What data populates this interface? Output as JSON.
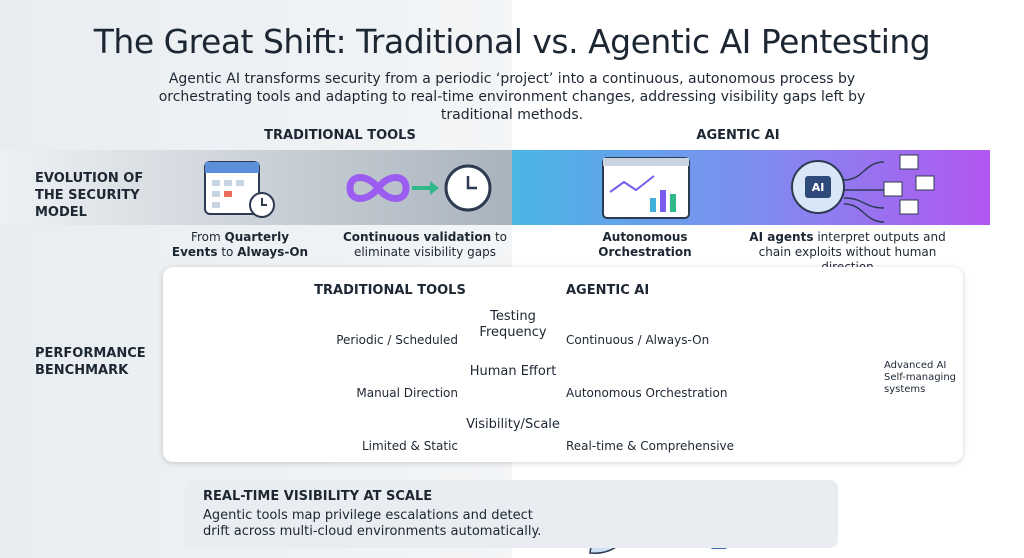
{
  "header": {
    "title": "The Great Shift: Traditional vs. Agentic AI Pentesting",
    "subtitle": "Agentic AI transforms security from a periodic ‘project’ into a continuous, autonomous process by orchestrating tools and adapting to real-time environment changes, addressing visibility gaps left by traditional methods."
  },
  "columns": [
    "TRADITIONAL TOOLS",
    "AGENTIC AI"
  ],
  "icon_label": "AI",
  "evolution": {
    "label": "EVOLUTION OF THE SECURITY MODEL",
    "captions": [
      [
        "From",
        "Quarterly Events",
        "to",
        "Always-On"
      ],
      [
        "Continuous validation",
        "to eliminate visibility gaps"
      ],
      [
        "Autonomous Orchestration"
      ],
      [
        "AI agents",
        "interpret outputs and chain exploits without human direction"
      ]
    ]
  },
  "benchmark": {
    "label": "PERFORMANCE BENCHMARK",
    "headers": [
      "TRADITIONAL TOOLS",
      "AGENTIC AI"
    ],
    "rows": [
      {
        "metric": "Testing Frequency",
        "traditional": "Periodic / Scheduled",
        "agentic": "Continuous / Always-On"
      },
      {
        "metric": "Human Effort",
        "traditional": "Manual Direction",
        "agentic": "Autonomous Orchestration"
      },
      {
        "metric": "Visibility/Scale",
        "traditional": "Limited & Static",
        "agentic": "Real-time & Comprehensive"
      }
    ],
    "side_note": [
      "Advanced AI",
      "Self-managing",
      "systems"
    ]
  },
  "footer": {
    "title": "REAL-TIME VISIBILITY AT SCALE",
    "text": "Agentic tools map privilege escalations and detect drift across multi-cloud environments automatically."
  }
}
